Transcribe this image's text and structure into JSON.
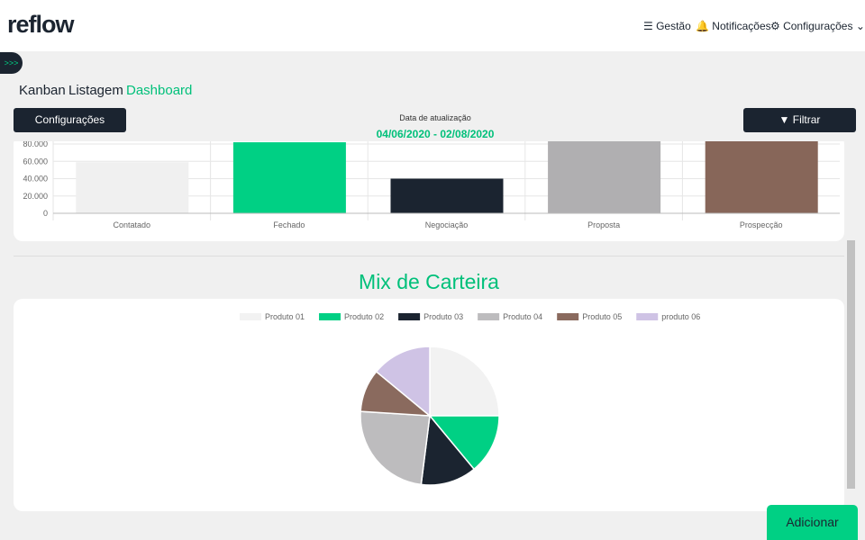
{
  "header": {
    "logo": "reflow",
    "nav": [
      "Gestão",
      "Notificações",
      "Configurações"
    ]
  },
  "tabs": [
    "Kanban",
    "Listagem",
    "Dashboard"
  ],
  "toolbar": {
    "config_button": "Configurações",
    "date_label": "Data de atualização",
    "date_range": "04/06/2020 - 02/08/2020",
    "filter_button": "Filtrar"
  },
  "add_button": "Adicionar",
  "chart_data": [
    {
      "type": "bar",
      "categories": [
        "Contatado",
        "Fechado",
        "Negociação",
        "Proposta",
        "Prospecção"
      ],
      "values": [
        59000,
        82000,
        40000,
        84000,
        84000
      ],
      "colors": [
        "#f0f0f0",
        "#00d084",
        "#1b2430",
        "#b0afb1",
        "#876659"
      ],
      "ylim": [
        0,
        80000
      ],
      "yticks": [
        0,
        {
          "value": 20000,
          "label": "20.000"
        },
        {
          "value": 40000,
          "label": "40.000"
        },
        {
          "value": 60000,
          "label": "60.000"
        },
        {
          "value": 80000,
          "label": "80.000"
        }
      ],
      "grid": true
    },
    {
      "type": "pie",
      "title": "Mix de Carteira",
      "categories": [
        "Produto 01",
        "Produto 02",
        "Produto 03",
        "Produto 04",
        "Produto 05",
        "produto 06"
      ],
      "values": [
        25,
        14,
        13,
        24,
        10,
        14
      ],
      "colors": [
        "#f2f2f2",
        "#00d084",
        "#1b2430",
        "#bdbcbe",
        "#8a6a5e",
        "#cfc3e5"
      ],
      "legend": "top"
    }
  ]
}
